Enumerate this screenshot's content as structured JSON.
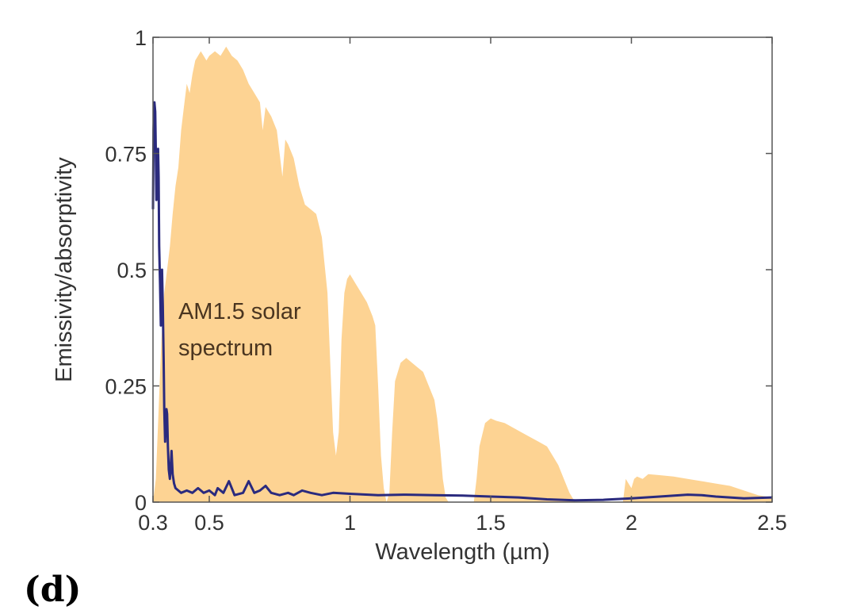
{
  "chart_data": {
    "type": "area",
    "xlabel": "Wavelength (µm)",
    "ylabel": "Emissivity/absorptivity",
    "xlim": [
      0.3,
      2.5
    ],
    "ylim": [
      0,
      1
    ],
    "x_ticks": [
      {
        "value": 0.3,
        "label": "0.3"
      },
      {
        "value": 0.5,
        "label": "0.5"
      },
      {
        "value": 1,
        "label": "1"
      },
      {
        "value": 1.5,
        "label": "1.5"
      },
      {
        "value": 2,
        "label": "2"
      },
      {
        "value": 2.5,
        "label": "2.5"
      }
    ],
    "y_ticks": [
      {
        "value": 0,
        "label": "0"
      },
      {
        "value": 0.25,
        "label": "0.25"
      },
      {
        "value": 0.5,
        "label": "0.5"
      },
      {
        "value": 0.75,
        "label": "0.75"
      },
      {
        "value": 1,
        "label": "1"
      }
    ],
    "annotation": {
      "lines": [
        "AM1.5 solar",
        "spectrum"
      ],
      "x": 0.39,
      "y": 0.36
    },
    "grid": false,
    "series": [
      {
        "kind": "filled-area",
        "color": "#fdd393",
        "points": [
          [
            0.3,
            0.0
          ],
          [
            0.31,
            0.05
          ],
          [
            0.32,
            0.2
          ],
          [
            0.33,
            0.35
          ],
          [
            0.34,
            0.45
          ],
          [
            0.35,
            0.5
          ],
          [
            0.36,
            0.55
          ],
          [
            0.37,
            0.62
          ],
          [
            0.38,
            0.68
          ],
          [
            0.39,
            0.72
          ],
          [
            0.4,
            0.8
          ],
          [
            0.41,
            0.85
          ],
          [
            0.42,
            0.9
          ],
          [
            0.43,
            0.88
          ],
          [
            0.44,
            0.92
          ],
          [
            0.45,
            0.95
          ],
          [
            0.46,
            0.96
          ],
          [
            0.47,
            0.97
          ],
          [
            0.48,
            0.96
          ],
          [
            0.49,
            0.95
          ],
          [
            0.5,
            0.96
          ],
          [
            0.52,
            0.97
          ],
          [
            0.54,
            0.96
          ],
          [
            0.56,
            0.98
          ],
          [
            0.58,
            0.96
          ],
          [
            0.6,
            0.95
          ],
          [
            0.62,
            0.93
          ],
          [
            0.64,
            0.9
          ],
          [
            0.66,
            0.88
          ],
          [
            0.68,
            0.86
          ],
          [
            0.69,
            0.8
          ],
          [
            0.7,
            0.85
          ],
          [
            0.72,
            0.83
          ],
          [
            0.74,
            0.8
          ],
          [
            0.76,
            0.7
          ],
          [
            0.77,
            0.78
          ],
          [
            0.78,
            0.77
          ],
          [
            0.8,
            0.74
          ],
          [
            0.82,
            0.68
          ],
          [
            0.84,
            0.64
          ],
          [
            0.86,
            0.63
          ],
          [
            0.88,
            0.62
          ],
          [
            0.9,
            0.57
          ],
          [
            0.92,
            0.45
          ],
          [
            0.93,
            0.3
          ],
          [
            0.94,
            0.15
          ],
          [
            0.95,
            0.1
          ],
          [
            0.96,
            0.15
          ],
          [
            0.97,
            0.35
          ],
          [
            0.98,
            0.45
          ],
          [
            0.99,
            0.48
          ],
          [
            1.0,
            0.49
          ],
          [
            1.02,
            0.47
          ],
          [
            1.04,
            0.45
          ],
          [
            1.06,
            0.43
          ],
          [
            1.08,
            0.4
          ],
          [
            1.09,
            0.38
          ],
          [
            1.1,
            0.25
          ],
          [
            1.11,
            0.1
          ],
          [
            1.12,
            0.03
          ],
          [
            1.13,
            0.0
          ],
          [
            1.14,
            0.02
          ],
          [
            1.15,
            0.15
          ],
          [
            1.16,
            0.26
          ],
          [
            1.18,
            0.3
          ],
          [
            1.2,
            0.31
          ],
          [
            1.22,
            0.3
          ],
          [
            1.24,
            0.29
          ],
          [
            1.26,
            0.28
          ],
          [
            1.28,
            0.25
          ],
          [
            1.3,
            0.22
          ],
          [
            1.31,
            0.18
          ],
          [
            1.32,
            0.12
          ],
          [
            1.33,
            0.05
          ],
          [
            1.34,
            0.01
          ],
          [
            1.35,
            0.0
          ],
          [
            1.44,
            0.0
          ],
          [
            1.45,
            0.05
          ],
          [
            1.46,
            0.12
          ],
          [
            1.48,
            0.17
          ],
          [
            1.5,
            0.18
          ],
          [
            1.52,
            0.175
          ],
          [
            1.55,
            0.17
          ],
          [
            1.58,
            0.16
          ],
          [
            1.61,
            0.15
          ],
          [
            1.64,
            0.14
          ],
          [
            1.67,
            0.13
          ],
          [
            1.7,
            0.12
          ],
          [
            1.72,
            0.1
          ],
          [
            1.74,
            0.08
          ],
          [
            1.76,
            0.05
          ],
          [
            1.78,
            0.02
          ],
          [
            1.79,
            0.01
          ],
          [
            1.8,
            0.0
          ],
          [
            1.97,
            0.0
          ],
          [
            1.98,
            0.05
          ],
          [
            1.99,
            0.04
          ],
          [
            2.0,
            0.03
          ],
          [
            2.01,
            0.05
          ],
          [
            2.02,
            0.055
          ],
          [
            2.04,
            0.05
          ],
          [
            2.06,
            0.06
          ],
          [
            2.1,
            0.058
          ],
          [
            2.15,
            0.055
          ],
          [
            2.2,
            0.05
          ],
          [
            2.25,
            0.045
          ],
          [
            2.3,
            0.04
          ],
          [
            2.35,
            0.035
          ],
          [
            2.4,
            0.025
          ],
          [
            2.45,
            0.015
          ],
          [
            2.5,
            0.01
          ]
        ]
      },
      {
        "kind": "line",
        "color": "#2a2a7e",
        "points": [
          [
            0.3,
            0.63
          ],
          [
            0.302,
            0.8
          ],
          [
            0.305,
            0.86
          ],
          [
            0.308,
            0.84
          ],
          [
            0.31,
            0.75
          ],
          [
            0.312,
            0.65
          ],
          [
            0.315,
            0.7
          ],
          [
            0.318,
            0.76
          ],
          [
            0.32,
            0.7
          ],
          [
            0.322,
            0.55
          ],
          [
            0.325,
            0.47
          ],
          [
            0.328,
            0.38
          ],
          [
            0.33,
            0.45
          ],
          [
            0.332,
            0.5
          ],
          [
            0.335,
            0.42
          ],
          [
            0.338,
            0.3
          ],
          [
            0.34,
            0.2
          ],
          [
            0.343,
            0.13
          ],
          [
            0.345,
            0.17
          ],
          [
            0.348,
            0.2
          ],
          [
            0.35,
            0.19
          ],
          [
            0.353,
            0.12
          ],
          [
            0.356,
            0.07
          ],
          [
            0.36,
            0.05
          ],
          [
            0.363,
            0.08
          ],
          [
            0.366,
            0.11
          ],
          [
            0.37,
            0.06
          ],
          [
            0.375,
            0.04
          ],
          [
            0.38,
            0.03
          ],
          [
            0.39,
            0.025
          ],
          [
            0.4,
            0.02
          ],
          [
            0.42,
            0.025
          ],
          [
            0.44,
            0.02
          ],
          [
            0.46,
            0.03
          ],
          [
            0.48,
            0.02
          ],
          [
            0.5,
            0.025
          ],
          [
            0.52,
            0.015
          ],
          [
            0.53,
            0.03
          ],
          [
            0.55,
            0.02
          ],
          [
            0.57,
            0.045
          ],
          [
            0.59,
            0.015
          ],
          [
            0.62,
            0.02
          ],
          [
            0.64,
            0.045
          ],
          [
            0.66,
            0.02
          ],
          [
            0.68,
            0.025
          ],
          [
            0.7,
            0.035
          ],
          [
            0.72,
            0.02
          ],
          [
            0.75,
            0.015
          ],
          [
            0.78,
            0.02
          ],
          [
            0.8,
            0.015
          ],
          [
            0.83,
            0.025
          ],
          [
            0.86,
            0.02
          ],
          [
            0.9,
            0.015
          ],
          [
            0.94,
            0.02
          ],
          [
            1.0,
            0.018
          ],
          [
            1.1,
            0.015
          ],
          [
            1.2,
            0.016
          ],
          [
            1.3,
            0.015
          ],
          [
            1.4,
            0.014
          ],
          [
            1.5,
            0.012
          ],
          [
            1.6,
            0.01
          ],
          [
            1.7,
            0.006
          ],
          [
            1.8,
            0.004
          ],
          [
            1.9,
            0.005
          ],
          [
            2.0,
            0.008
          ],
          [
            2.1,
            0.012
          ],
          [
            2.2,
            0.016
          ],
          [
            2.25,
            0.015
          ],
          [
            2.3,
            0.012
          ],
          [
            2.35,
            0.01
          ],
          [
            2.4,
            0.008
          ],
          [
            2.5,
            0.01
          ]
        ]
      }
    ]
  },
  "figure": {
    "panel_label": "(d)"
  }
}
